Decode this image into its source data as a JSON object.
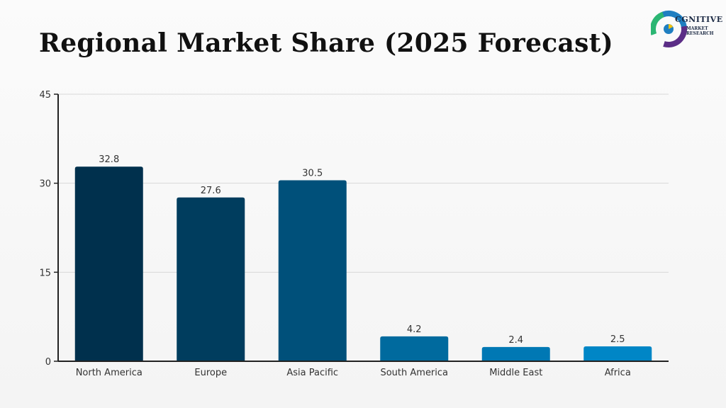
{
  "header": {
    "title": "Regional Market Share (2025 Forecast)"
  },
  "logo": {
    "name": "CGNITIVE",
    "sub_line1": "MARKET",
    "sub_line2": "RESEARCH",
    "colors": [
      "#2bb673",
      "#1f7fc1",
      "#5b2d86",
      "#f4c20d"
    ]
  },
  "chart_data": {
    "type": "bar",
    "categories": [
      "North America",
      "Europe",
      "Asia Pacific",
      "South America",
      "Middle East",
      "Africa"
    ],
    "values": [
      32.8,
      27.6,
      30.5,
      4.2,
      2.4,
      2.5
    ],
    "value_labels": [
      "32.8",
      "27.6",
      "30.5",
      "4.2",
      "2.4",
      "2.5"
    ],
    "ylim": [
      0,
      45
    ],
    "yticks": [
      0,
      15,
      30,
      45
    ],
    "ytick_labels": [
      "0",
      "15",
      "30",
      "45"
    ],
    "grid": true,
    "colors": [
      "#00304d",
      "#003d5e",
      "#00507a",
      "#006a9e",
      "#0078b4",
      "#0086c6"
    ],
    "xlabel": "",
    "ylabel": ""
  }
}
